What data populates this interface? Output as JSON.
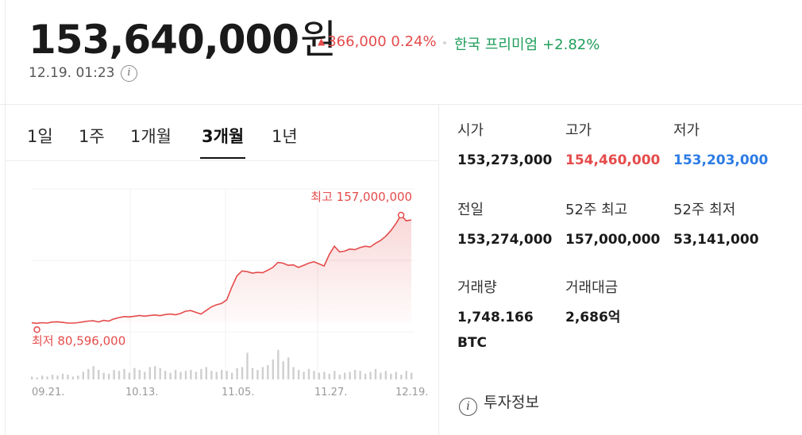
{
  "header": {
    "price": "153,640,000",
    "price_unit": "원",
    "change_arrow": "▲",
    "change_amount": "366,000",
    "change_percent": "0.24%",
    "premium_label": "한국 프리미엄",
    "premium_value": "+2.82%",
    "timestamp": "12.19. 01:23",
    "info_glyph": "i"
  },
  "tabs": [
    {
      "label": "1일",
      "active": false
    },
    {
      "label": "1주",
      "active": false
    },
    {
      "label": "1개월",
      "active": false
    },
    {
      "label": "3개월",
      "active": true
    },
    {
      "label": "1년",
      "active": false
    }
  ],
  "chart_data": {
    "type": "line",
    "title": "",
    "max_label": "최고 157,000,000",
    "min_label": "최저 80,596,000",
    "max_value": 157000000,
    "min_value": 80596000,
    "x_tick_labels": [
      "09.21.",
      "10.13.",
      "11.05.",
      "11.27.",
      "12.19."
    ],
    "series": [
      {
        "values": [
          80.8,
          80.4,
          80.9,
          80.6,
          81.3,
          81.5,
          81.1,
          80.6,
          80.596,
          80.9,
          81.5,
          82.0,
          82.2,
          81.4,
          82.5,
          82.0,
          83.5,
          84.5,
          85.2,
          85.0,
          85.4,
          86.0,
          85.5,
          86.0,
          86.3,
          85.8,
          86.6,
          87.0,
          86.5,
          87.4,
          89.0,
          89.5,
          88.2,
          87.0,
          89.5,
          92.0,
          93.5,
          94.5,
          97.0,
          106.0,
          114.0,
          117.5,
          117.0,
          116.0,
          116.5,
          116.2,
          118.0,
          120.0,
          123.5,
          123.0,
          121.5,
          121.8,
          120.0,
          121.5,
          123.0,
          124.0,
          122.5,
          121.0,
          129.0,
          135.0,
          131.0,
          131.5,
          133.0,
          132.5,
          134.0,
          135.0,
          134.5,
          137.0,
          139.0,
          142.0,
          146.0,
          151.0,
          157.0,
          153.0,
          153.64
        ]
      }
    ],
    "volume": [
      0.3,
      0.2,
      0.4,
      0.3,
      0.5,
      0.4,
      0.6,
      0.5,
      0.3,
      0.4,
      0.8,
      1.1,
      1.4,
      1.0,
      0.7,
      0.6,
      1.0,
      0.9,
      1.1,
      0.7,
      1.2,
      1.0,
      0.8,
      1.3,
      1.4,
      1.2,
      0.9,
      0.7,
      1.0,
      0.8,
      0.9,
      1.0,
      0.8,
      1.1,
      1.3,
      0.9,
      0.8,
      1.0,
      0.9,
      0.7,
      1.2,
      1.3,
      2.8,
      1.2,
      1.0,
      1.3,
      1.5,
      2.1,
      3.1,
      1.9,
      2.3,
      1.3,
      1.0,
      0.8,
      1.1,
      0.9,
      0.7,
      0.8,
      0.6,
      0.9,
      0.5,
      0.7,
      0.8,
      1.0,
      0.9,
      0.6,
      0.8,
      1.1,
      0.7,
      0.9,
      0.6,
      0.8,
      0.5,
      0.9,
      0.7
    ]
  },
  "stats": {
    "open": {
      "label": "시가",
      "value": "153,273,000"
    },
    "high": {
      "label": "고가",
      "value": "154,460,000"
    },
    "low": {
      "label": "저가",
      "value": "153,203,000"
    },
    "prev_close": {
      "label": "전일",
      "value": "153,274,000"
    },
    "high_52w": {
      "label": "52주 최고",
      "value": "157,000,000"
    },
    "low_52w": {
      "label": "52주 최저",
      "value": "53,141,000"
    },
    "volume": {
      "label": "거래량",
      "value": "1,748.166 BTC"
    },
    "trade_value": {
      "label": "거래대금",
      "value": "2,686억"
    }
  },
  "invest_info": {
    "label": "투자정보",
    "glyph": "i"
  },
  "colors": {
    "up": "#e54b4b",
    "down": "#2c7be5",
    "premium": "#1e9e5a",
    "volume_bar": "#cfcfcf"
  }
}
